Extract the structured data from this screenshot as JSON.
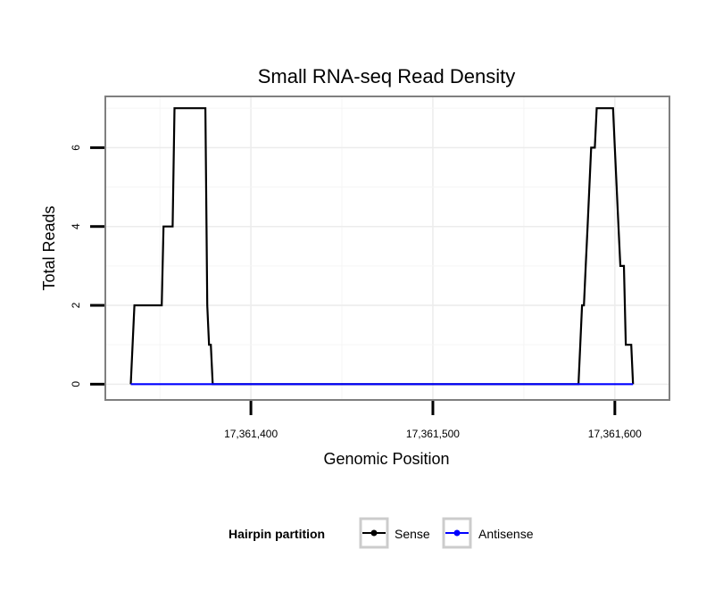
{
  "chart_data": {
    "type": "line",
    "title": "Small RNA-seq Read Density",
    "xlabel": "Genomic Position",
    "ylabel": "Total Reads",
    "xlim": [
      17361320,
      17361630
    ],
    "ylim": [
      -0.4,
      7.3
    ],
    "x_ticks": [
      17361400,
      17361500,
      17361600
    ],
    "x_tick_labels": [
      "17,361,400",
      "17,361,500",
      "17,361,600"
    ],
    "y_ticks": [
      0,
      2,
      4,
      6
    ],
    "y_tick_labels": [
      "0",
      "2",
      "4",
      "6"
    ],
    "grid": true,
    "legend": {
      "title": "Hairpin partition",
      "position": "bottom",
      "entries": [
        "Sense",
        "Antisense"
      ]
    },
    "series": [
      {
        "name": "Sense",
        "color": "#000000",
        "points": [
          [
            17361334,
            0
          ],
          [
            17361336,
            2
          ],
          [
            17361351,
            2
          ],
          [
            17361352,
            4
          ],
          [
            17361357,
            4
          ],
          [
            17361358,
            7
          ],
          [
            17361375,
            7
          ],
          [
            17361376,
            2
          ],
          [
            17361377,
            1
          ],
          [
            17361378,
            1
          ],
          [
            17361379,
            0
          ],
          [
            17361580,
            0
          ],
          [
            17361582,
            2
          ],
          [
            17361583,
            2
          ],
          [
            17361584,
            3
          ],
          [
            17361585,
            4
          ],
          [
            17361587,
            6
          ],
          [
            17361589,
            6
          ],
          [
            17361590,
            7
          ],
          [
            17361599,
            7
          ],
          [
            17361600,
            6
          ],
          [
            17361602,
            4
          ],
          [
            17361603,
            3
          ],
          [
            17361605,
            3
          ],
          [
            17361606,
            1
          ],
          [
            17361609,
            1
          ],
          [
            17361610,
            0
          ]
        ]
      },
      {
        "name": "Antisense",
        "color": "#0000ff",
        "points": [
          [
            17361334,
            0
          ],
          [
            17361379,
            0
          ],
          [
            17361580,
            0
          ],
          [
            17361610,
            0
          ]
        ]
      }
    ]
  }
}
